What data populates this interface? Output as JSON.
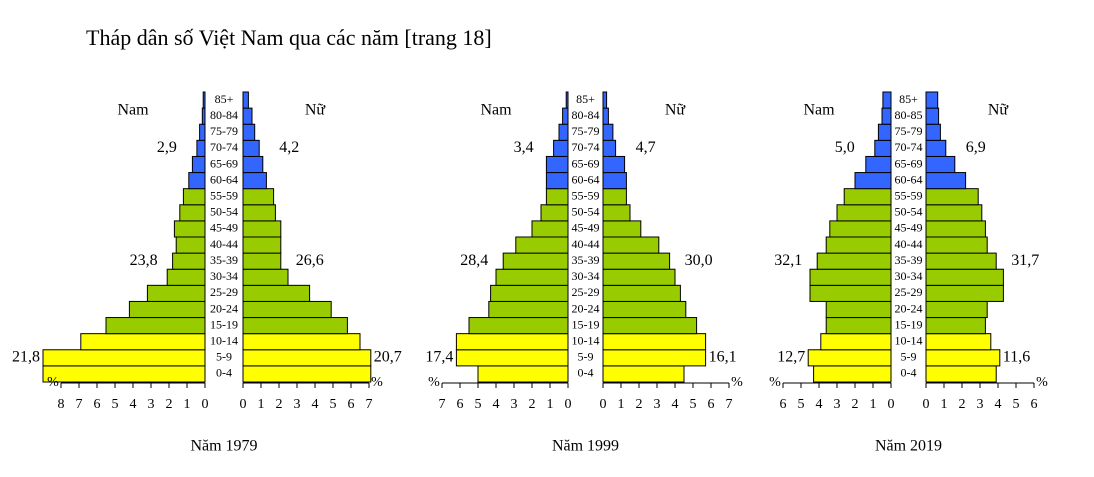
{
  "title": "Tháp dân số Việt Nam qua các năm [trang 18]",
  "chart_data": [
    {
      "type": "pyramid",
      "xlabel": "Năm 1979",
      "unit": "%",
      "categories": [
        "0-4",
        "5-9",
        "10-14",
        "15-19",
        "20-24",
        "25-29",
        "30-34",
        "35-39",
        "40-44",
        "45-49",
        "50-54",
        "55-59",
        "60-64",
        "65-69",
        "70-74",
        "75-79",
        "80-84",
        "85+"
      ],
      "category_colors": [
        "#ffff00",
        "#ffff00",
        "#ffff00",
        "#99cc00",
        "#99cc00",
        "#99cc00",
        "#99cc00",
        "#99cc00",
        "#99cc00",
        "#99cc00",
        "#99cc00",
        "#99cc00",
        "#3366ff",
        "#3366ff",
        "#3366ff",
        "#3366ff",
        "#3366ff",
        "#3366ff"
      ],
      "series": [
        {
          "name": "Nam",
          "side": "left",
          "xlim": [
            0,
            8
          ],
          "xticks": [
            0,
            1,
            2,
            3,
            4,
            5,
            6,
            7,
            8
          ],
          "values": [
            9.0,
            9.0,
            6.9,
            5.5,
            4.2,
            3.2,
            2.1,
            1.8,
            1.6,
            1.7,
            1.4,
            1.2,
            0.9,
            0.7,
            0.45,
            0.3,
            0.15,
            0.1
          ],
          "annotations": [
            "21,8",
            "23,8",
            "2,9"
          ]
        },
        {
          "name": "Nữ",
          "side": "right",
          "xlim": [
            0,
            7
          ],
          "xticks": [
            0,
            1,
            2,
            3,
            4,
            5,
            6,
            7
          ],
          "values": [
            7.1,
            7.1,
            6.5,
            5.8,
            4.9,
            3.7,
            2.5,
            2.1,
            2.1,
            2.1,
            1.8,
            1.7,
            1.3,
            1.1,
            0.9,
            0.65,
            0.5,
            0.3
          ],
          "annotations": [
            "20,7",
            "26,6",
            "4,2"
          ]
        }
      ]
    },
    {
      "type": "pyramid",
      "xlabel": "Năm 1999",
      "unit": "%",
      "categories": [
        "0-4",
        "5-9",
        "10-14",
        "15-19",
        "20-24",
        "25-29",
        "30-34",
        "35-39",
        "40-44",
        "45-49",
        "50-54",
        "55-59",
        "60-64",
        "65-69",
        "70-74",
        "75-79",
        "80-84",
        "85+"
      ],
      "category_colors": [
        "#ffff00",
        "#ffff00",
        "#ffff00",
        "#99cc00",
        "#99cc00",
        "#99cc00",
        "#99cc00",
        "#99cc00",
        "#99cc00",
        "#99cc00",
        "#99cc00",
        "#99cc00",
        "#3366ff",
        "#3366ff",
        "#3366ff",
        "#3366ff",
        "#3366ff",
        "#3366ff"
      ],
      "series": [
        {
          "name": "Nam",
          "side": "left",
          "xlim": [
            0,
            7
          ],
          "xticks": [
            0,
            1,
            2,
            3,
            4,
            5,
            6,
            7
          ],
          "values": [
            5.0,
            6.2,
            6.2,
            5.5,
            4.4,
            4.3,
            4.0,
            3.6,
            2.9,
            2.0,
            1.5,
            1.2,
            1.2,
            1.2,
            0.8,
            0.5,
            0.3,
            0.1
          ],
          "annotations": [
            "17,4",
            "28,4",
            "3,4"
          ]
        },
        {
          "name": "Nữ",
          "side": "right",
          "xlim": [
            0,
            7
          ],
          "xticks": [
            0,
            1,
            2,
            3,
            4,
            5,
            6,
            7
          ],
          "values": [
            4.5,
            5.7,
            5.7,
            5.2,
            4.6,
            4.3,
            4.0,
            3.7,
            3.1,
            2.1,
            1.5,
            1.3,
            1.3,
            1.2,
            0.7,
            0.55,
            0.3,
            0.2
          ],
          "annotations": [
            "16,1",
            "30,0",
            "4,7"
          ]
        }
      ]
    },
    {
      "type": "pyramid",
      "xlabel": "Năm 2019",
      "unit": "%",
      "categories": [
        "0-4",
        "5-9",
        "10-14",
        "15-19",
        "20-24",
        "25-29",
        "30-34",
        "35-39",
        "40-44",
        "45-49",
        "50-54",
        "55-59",
        "60-64",
        "65-69",
        "70-74",
        "75-79",
        "80-85",
        "85+"
      ],
      "category_colors": [
        "#ffff00",
        "#ffff00",
        "#ffff00",
        "#99cc00",
        "#99cc00",
        "#99cc00",
        "#99cc00",
        "#99cc00",
        "#99cc00",
        "#99cc00",
        "#99cc00",
        "#99cc00",
        "#3366ff",
        "#3366ff",
        "#3366ff",
        "#3366ff",
        "#3366ff",
        "#3366ff"
      ],
      "series": [
        {
          "name": "Nam",
          "side": "left",
          "xlim": [
            0,
            6
          ],
          "xticks": [
            0,
            1,
            2,
            3,
            4,
            5,
            6
          ],
          "values": [
            4.3,
            4.6,
            3.9,
            3.6,
            3.6,
            4.5,
            4.5,
            4.1,
            3.6,
            3.4,
            3.0,
            2.6,
            2.0,
            1.4,
            0.9,
            0.7,
            0.5,
            0.45
          ],
          "annotations": [
            "12,7",
            "32,1",
            "5,0"
          ]
        },
        {
          "name": "Nữ",
          "side": "right",
          "xlim": [
            0,
            6
          ],
          "xticks": [
            0,
            1,
            2,
            3,
            4,
            5,
            6
          ],
          "values": [
            3.9,
            4.1,
            3.6,
            3.3,
            3.4,
            4.3,
            4.3,
            3.9,
            3.4,
            3.3,
            3.1,
            2.9,
            2.2,
            1.6,
            1.1,
            0.8,
            0.7,
            0.65
          ],
          "annotations": [
            "11,6",
            "31,7",
            "6,9"
          ]
        }
      ]
    }
  ]
}
